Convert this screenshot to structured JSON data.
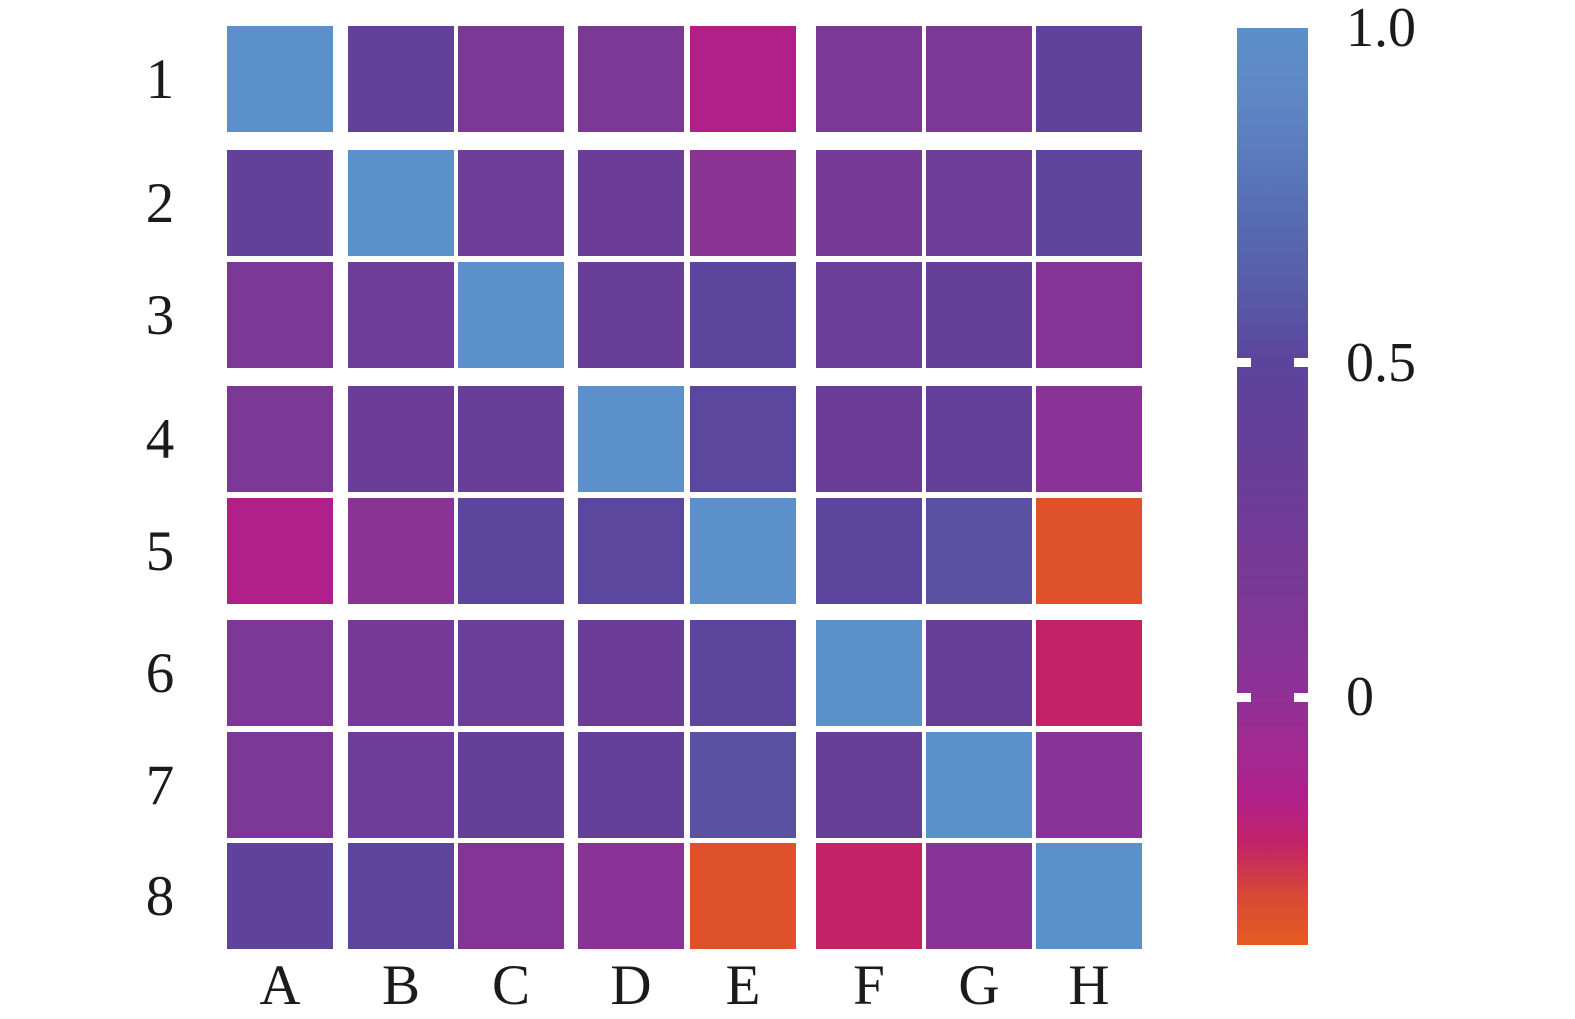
{
  "figure": {
    "background_color": "#ffffff",
    "text_color": "#1b1b1b"
  },
  "chart_data": {
    "type": "heatmap",
    "title": "",
    "xlabel": "",
    "ylabel": "",
    "columns": [
      "A",
      "B",
      "C",
      "D",
      "E",
      "F",
      "G",
      "H"
    ],
    "rows": [
      "1",
      "2",
      "3",
      "4",
      "5",
      "6",
      "7",
      "8"
    ],
    "values": [
      [
        1.0,
        0.41,
        0.15,
        0.15,
        -0.15,
        0.13,
        0.15,
        0.46
      ],
      [
        0.41,
        1.0,
        0.29,
        0.31,
        0.03,
        0.21,
        0.29,
        0.49
      ],
      [
        0.15,
        0.29,
        1.0,
        0.34,
        0.51,
        0.33,
        0.37,
        0.08
      ],
      [
        0.15,
        0.31,
        0.34,
        1.0,
        0.52,
        0.3,
        0.39,
        0.04
      ],
      [
        -0.15,
        0.03,
        0.51,
        0.52,
        1.0,
        0.51,
        0.56,
        -0.33
      ],
      [
        0.13,
        0.21,
        0.33,
        0.3,
        0.51,
        1.0,
        0.36,
        -0.22
      ],
      [
        0.15,
        0.29,
        0.37,
        0.39,
        0.56,
        0.36,
        1.0,
        0.06
      ],
      [
        0.46,
        0.49,
        0.08,
        0.04,
        -0.33,
        -0.22,
        0.06,
        1.0
      ]
    ],
    "vmin": -0.37,
    "vmax": 1.0,
    "grid": false,
    "legend_position": "right",
    "colorbar": {
      "ticks": [
        {
          "label": "1.0",
          "value": 1.0
        },
        {
          "label": "0.5",
          "value": 0.5
        },
        {
          "label": "0",
          "value": 0.0
        }
      ],
      "tick_color": "#ffffff"
    },
    "colormap": [
      {
        "v": 1.0,
        "color": "#5c90ca"
      },
      {
        "v": 0.9,
        "color": "#5f87c6"
      },
      {
        "v": 0.8,
        "color": "#5a79bc"
      },
      {
        "v": 0.7,
        "color": "#5769b1"
      },
      {
        "v": 0.6,
        "color": "#585aa8"
      },
      {
        "v": 0.5,
        "color": "#5c449c"
      },
      {
        "v": 0.4,
        "color": "#64409a"
      },
      {
        "v": 0.3,
        "color": "#6c3d98"
      },
      {
        "v": 0.2,
        "color": "#763a96"
      },
      {
        "v": 0.1,
        "color": "#803696"
      },
      {
        "v": 0.0,
        "color": "#903095"
      },
      {
        "v": -0.1,
        "color": "#a62790"
      },
      {
        "v": -0.15,
        "color": "#b11f8b"
      },
      {
        "v": -0.22,
        "color": "#c32366"
      },
      {
        "v": -0.3,
        "color": "#d84a33"
      },
      {
        "v": -0.37,
        "color": "#e55b20"
      }
    ]
  }
}
